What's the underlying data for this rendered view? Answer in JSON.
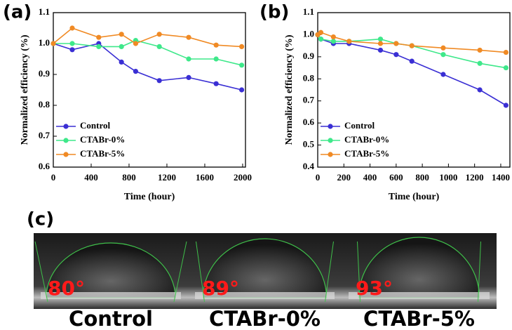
{
  "chart_data": [
    {
      "type": "line",
      "label": "(a)",
      "x_label": "Time (hour)",
      "y_label": "Normalized efficiency (%)",
      "x": [
        0,
        200,
        480,
        720,
        870,
        1120,
        1430,
        1720,
        1990
      ],
      "series": [
        {
          "name": "Control",
          "color": "#3a2fd4",
          "values": [
            1.0,
            0.98,
            1.0,
            0.94,
            0.91,
            0.88,
            0.89,
            0.87,
            0.85
          ]
        },
        {
          "name": "CTABr-0%",
          "color": "#3ee88a",
          "values": [
            1.0,
            1.0,
            0.99,
            0.99,
            1.01,
            0.99,
            0.95,
            0.95,
            0.93
          ]
        },
        {
          "name": "CTABr-5%",
          "color": "#f08a24",
          "values": [
            1.0,
            1.05,
            1.02,
            1.03,
            1.0,
            1.03,
            1.02,
            0.995,
            0.99
          ]
        }
      ],
      "xlim": [
        0,
        2030
      ],
      "xticks": [
        0,
        400,
        800,
        1200,
        1600,
        2000
      ],
      "ylim": [
        0.6,
        1.1
      ],
      "yticks": [
        0.6,
        0.7,
        0.8,
        0.9,
        {
          "value": 1,
          "label": "1.0"
        },
        1.1
      ],
      "legend": "lower left"
    },
    {
      "type": "line",
      "label": "(b)",
      "x_label": "Time (hour)",
      "y_label": "Normalized efficiency (%)",
      "x": [
        0,
        24,
        120,
        240,
        480,
        600,
        720,
        960,
        1240,
        1440
      ],
      "series": [
        {
          "name": "Control",
          "color": "#3a2fd4",
          "values": [
            1.0,
            0.98,
            0.96,
            0.96,
            0.93,
            0.91,
            0.88,
            0.82,
            0.75,
            0.68
          ]
        },
        {
          "name": "CTABr-0%",
          "color": "#3ee88a",
          "values": [
            1.0,
            0.98,
            0.97,
            0.97,
            0.98,
            0.96,
            0.95,
            0.91,
            0.87,
            0.85
          ]
        },
        {
          "name": "CTABr-5%",
          "color": "#f08a24",
          "values": [
            1.0,
            1.01,
            0.99,
            0.97,
            0.96,
            0.96,
            0.95,
            0.94,
            0.93,
            0.92
          ]
        }
      ],
      "xlim": [
        0,
        1470
      ],
      "xticks": [
        0,
        200,
        400,
        600,
        800,
        1000,
        1200,
        1400
      ],
      "ylim": [
        0.4,
        1.1
      ],
      "yticks": [
        0.4,
        0.5,
        0.6,
        0.7,
        0.8,
        0.9,
        {
          "value": 1,
          "label": "1.0"
        },
        1.1
      ],
      "legend": "lower left"
    }
  ],
  "panel_c": {
    "label": "(c)",
    "images": [
      {
        "angle": "80°",
        "name": "Control"
      },
      {
        "angle": "89°",
        "name": "CTABr-0%"
      },
      {
        "angle": "93°",
        "name": "CTABr-5%"
      }
    ]
  }
}
